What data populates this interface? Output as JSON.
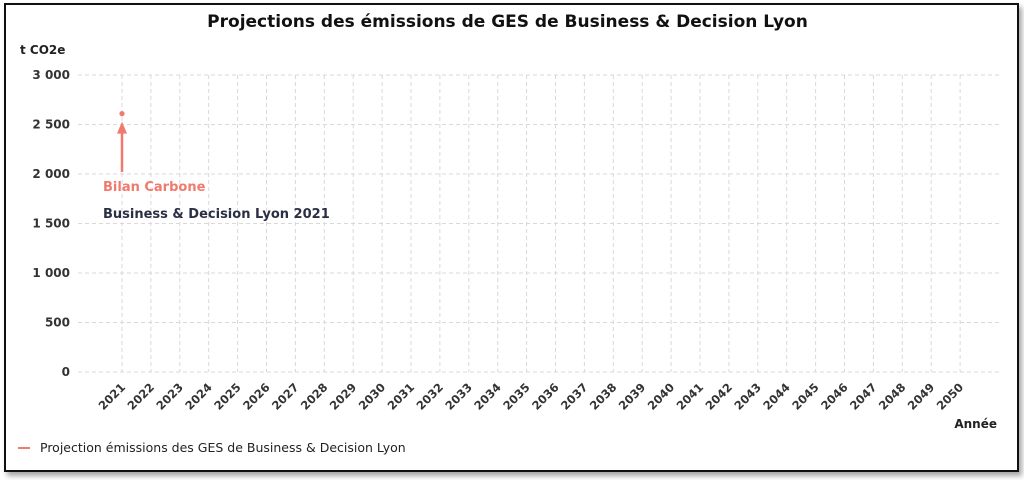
{
  "chart_data": {
    "type": "line",
    "title": "Projections des émissions de GES de Business & Decision Lyon",
    "ylabel": "t CO2e",
    "xlabel": "Année",
    "categories": [
      "2021",
      "2022",
      "2023",
      "2024",
      "2025",
      "2026",
      "2027",
      "2028",
      "2029",
      "2030",
      "2031",
      "2032",
      "2033",
      "2034",
      "2035",
      "2036",
      "2037",
      "2038",
      "2039",
      "2040",
      "2041",
      "2042",
      "2043",
      "2044",
      "2045",
      "2046",
      "2047",
      "2048",
      "2049",
      "2050"
    ],
    "ylim": [
      0,
      3000
    ],
    "yticks": [
      0,
      500,
      1000,
      1500,
      2000,
      2500,
      3000
    ],
    "ytick_labels": [
      "0",
      "500",
      "1 000",
      "1 500",
      "2 000",
      "2 500",
      "3 000"
    ],
    "grid": true,
    "legend_position": "bottom-left",
    "series": [
      {
        "name": "Projection émissions des GES de Business & Decision Lyon",
        "color": "#f07a6e",
        "points": [
          {
            "x": "2021",
            "y": 2610
          }
        ]
      }
    ],
    "annotations": [
      {
        "text": "Bilan Carbone",
        "color": "#f07a6e",
        "x": "2021",
        "y": 2610
      },
      {
        "text": "Business & Decision Lyon 2021",
        "color": "#2b2f44",
        "x": "2021",
        "y": 2610
      }
    ]
  }
}
